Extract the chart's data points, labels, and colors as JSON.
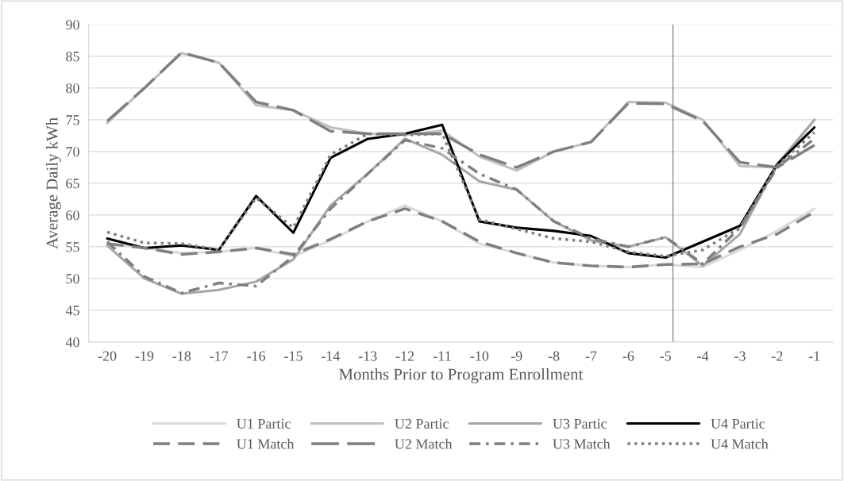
{
  "chart_data": {
    "type": "line",
    "xlabel": "Months Prior to Program Enrollment",
    "ylabel": "Average Daily kWh",
    "x": [
      -20,
      -19,
      -18,
      -17,
      -16,
      -15,
      -14,
      -13,
      -12,
      -11,
      -10,
      -9,
      -8,
      -7,
      -6,
      -5,
      -4,
      -3,
      -2,
      -1
    ],
    "xlim": [
      -20.5,
      -0.5
    ],
    "xticks": [
      -20,
      -19,
      -18,
      -17,
      -16,
      -15,
      -14,
      -13,
      -12,
      -11,
      -10,
      -9,
      -8,
      -7,
      -6,
      -5,
      -4,
      -3,
      -2,
      -1
    ],
    "ylim": [
      40,
      90
    ],
    "yticks": [
      40,
      45,
      50,
      55,
      60,
      65,
      70,
      75,
      80,
      85,
      90
    ],
    "grid": "y",
    "legend": "bottom",
    "marker": "none",
    "ref_lines": [
      {
        "axis": "x",
        "value": -4.8,
        "color": "#808080",
        "line_style": "solid"
      }
    ],
    "series": [
      {
        "name": "U1 Partic",
        "color": "#d9d9d9",
        "line_style": "solid",
        "values": [
          55.5,
          54.8,
          54,
          54.2,
          54.8,
          53.5,
          56,
          59,
          61.5,
          59,
          55.5,
          54,
          52.5,
          52,
          51.8,
          52.2,
          51.8,
          54.5,
          57.5,
          61
        ]
      },
      {
        "name": "U2 Partic",
        "color": "#bfbfbf",
        "line_style": "solid",
        "values": [
          74.5,
          80,
          85.5,
          84,
          77.3,
          76.5,
          73.8,
          72.8,
          72.6,
          73.3,
          69.2,
          67,
          70,
          71.5,
          77.8,
          77.7,
          75,
          67.7,
          67.5,
          75
        ]
      },
      {
        "name": "U3 Partic",
        "color": "#a6a6a6",
        "line_style": "solid",
        "values": [
          55.2,
          50,
          47.6,
          48.2,
          49.5,
          53,
          61.5,
          66.5,
          72,
          69.5,
          65.3,
          64,
          59,
          56,
          55,
          56.5,
          52,
          57,
          68,
          75
        ]
      },
      {
        "name": "U4 Partic",
        "color": "#000000",
        "line_style": "solid",
        "values": [
          56.3,
          54.8,
          55.2,
          54.5,
          63,
          57.2,
          69,
          72,
          72.8,
          74.2,
          59,
          58,
          57.5,
          56.7,
          54,
          53.3,
          55.8,
          58.3,
          68,
          73.8
        ]
      },
      {
        "name": "U1 Match",
        "color": "#7f7f7f",
        "line_style": "dashed",
        "values": [
          55.5,
          54.8,
          53.8,
          54.2,
          54.8,
          53.8,
          56.2,
          59,
          61,
          59,
          55.8,
          54,
          52.5,
          52,
          51.8,
          52.2,
          52.3,
          55,
          57,
          60.5
        ]
      },
      {
        "name": "U2 Match",
        "color": "#7f7f7f",
        "line_style": "longdash",
        "values": [
          74.8,
          80,
          85.6,
          84,
          77.8,
          76.5,
          73.2,
          72.8,
          72.8,
          72.8,
          69.5,
          67.5,
          70,
          71.5,
          77.6,
          77.5,
          74.8,
          68.3,
          67.5,
          71
        ]
      },
      {
        "name": "U3 Match",
        "color": "#7f7f7f",
        "line_style": "dashdot",
        "values": [
          55.8,
          50.3,
          47.7,
          49.3,
          48.8,
          53.5,
          61,
          66.5,
          71.8,
          70.5,
          66.5,
          64,
          59,
          56.3,
          55,
          56.5,
          52.3,
          58,
          67.5,
          72
        ]
      },
      {
        "name": "U4 Match",
        "color": "#7f7f7f",
        "line_style": "dotted",
        "values": [
          57.3,
          55.6,
          55.5,
          54.5,
          62.7,
          58,
          69.5,
          72.8,
          72.6,
          72.8,
          59.3,
          57.8,
          56.3,
          55.8,
          54.2,
          53.5,
          54.5,
          58,
          67.8,
          73
        ]
      }
    ]
  }
}
